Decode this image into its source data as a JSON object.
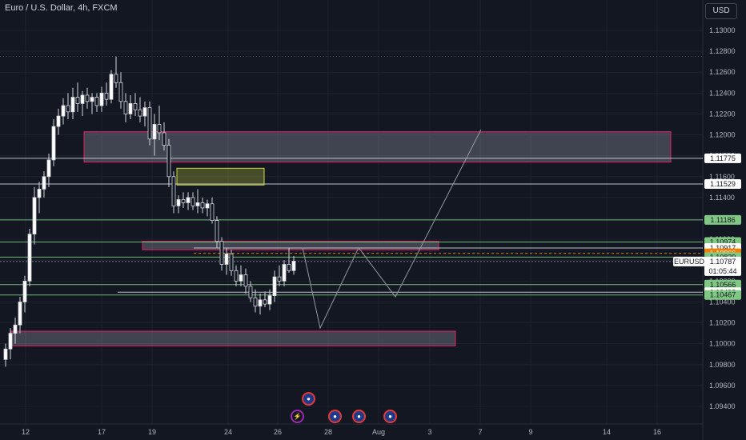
{
  "header": {
    "title": "Euro / U.S. Dollar, 4h, FXCM",
    "currency": "USD"
  },
  "chart_data": {
    "type": "candlestick",
    "title": "Euro / U.S. Dollar, 4h, FXCM",
    "ylim": [
      1.093,
      1.132
    ],
    "y_ticks": [
      "1.13000",
      "1.12800",
      "1.12600",
      "1.12400",
      "1.12200",
      "1.12000",
      "1.11800",
      "1.11600",
      "1.11400",
      "1.11200",
      "1.11000",
      "1.10800",
      "1.10600",
      "1.10400",
      "1.10200",
      "1.10000",
      "1.09800",
      "1.09600",
      "1.09400"
    ],
    "x_ticks": [
      "12",
      "17",
      "19",
      "24",
      "26",
      "28",
      "Aug",
      "3",
      "7",
      "9",
      "14",
      "16"
    ],
    "grid": true,
    "candles": [
      [
        1.0985,
        1.1,
        1.0978,
        1.0995
      ],
      [
        1.0995,
        1.1015,
        1.0985,
        1.101
      ],
      [
        1.101,
        1.1025,
        1.1,
        1.1018
      ],
      [
        1.1018,
        1.1045,
        1.101,
        1.104
      ],
      [
        1.104,
        1.1065,
        1.103,
        1.106
      ],
      [
        1.106,
        1.111,
        1.1055,
        1.1105
      ],
      [
        1.1105,
        1.115,
        1.1095,
        1.114
      ],
      [
        1.114,
        1.1155,
        1.1125,
        1.1148
      ],
      [
        1.1148,
        1.1165,
        1.114,
        1.116
      ],
      [
        1.116,
        1.1182,
        1.115,
        1.1176
      ],
      [
        1.1176,
        1.1215,
        1.117,
        1.1208
      ],
      [
        1.1208,
        1.1225,
        1.12,
        1.1218
      ],
      [
        1.1218,
        1.1235,
        1.121,
        1.1228
      ],
      [
        1.1228,
        1.124,
        1.1215,
        1.1222
      ],
      [
        1.1222,
        1.1245,
        1.1215,
        1.1236
      ],
      [
        1.1236,
        1.125,
        1.1222,
        1.123
      ],
      [
        1.123,
        1.1242,
        1.1218,
        1.1238
      ],
      [
        1.1238,
        1.1245,
        1.1225,
        1.1232
      ],
      [
        1.1232,
        1.124,
        1.122,
        1.1236
      ],
      [
        1.1236,
        1.124,
        1.1222,
        1.1228
      ],
      [
        1.1228,
        1.1246,
        1.1222,
        1.124
      ],
      [
        1.124,
        1.125,
        1.1228,
        1.1234
      ],
      [
        1.1234,
        1.1262,
        1.123,
        1.1258
      ],
      [
        1.1258,
        1.1275,
        1.1245,
        1.125
      ],
      [
        1.125,
        1.126,
        1.1225,
        1.1232
      ],
      [
        1.1232,
        1.124,
        1.1212,
        1.122
      ],
      [
        1.122,
        1.1238,
        1.1215,
        1.123
      ],
      [
        1.123,
        1.124,
        1.1218,
        1.1224
      ],
      [
        1.1224,
        1.1236,
        1.1212,
        1.1218
      ],
      [
        1.1218,
        1.1232,
        1.1208,
        1.1226
      ],
      [
        1.1226,
        1.1232,
        1.119,
        1.1196
      ],
      [
        1.1196,
        1.122,
        1.118,
        1.121
      ],
      [
        1.121,
        1.1228,
        1.1195,
        1.1202
      ],
      [
        1.1202,
        1.1212,
        1.1185,
        1.119
      ],
      [
        1.119,
        1.1196,
        1.115,
        1.116
      ],
      [
        1.116,
        1.1165,
        1.1125,
        1.1132
      ],
      [
        1.1132,
        1.1142,
        1.1125,
        1.1138
      ],
      [
        1.1138,
        1.1145,
        1.113,
        1.1135
      ],
      [
        1.1135,
        1.1145,
        1.1128,
        1.114
      ],
      [
        1.114,
        1.1145,
        1.1128,
        1.1132
      ],
      [
        1.1132,
        1.1148,
        1.1125,
        1.1135
      ],
      [
        1.1135,
        1.114,
        1.1125,
        1.113
      ],
      [
        1.113,
        1.1138,
        1.1122,
        1.1134
      ],
      [
        1.1134,
        1.114,
        1.1115,
        1.1118
      ],
      [
        1.1118,
        1.1122,
        1.1092,
        1.1098
      ],
      [
        1.1098,
        1.1102,
        1.107,
        1.1076
      ],
      [
        1.1076,
        1.1092,
        1.1066,
        1.1086
      ],
      [
        1.1086,
        1.109,
        1.1065,
        1.107
      ],
      [
        1.107,
        1.1075,
        1.1055,
        1.106
      ],
      [
        1.106,
        1.1075,
        1.1055,
        1.1066
      ],
      [
        1.1066,
        1.1072,
        1.1048,
        1.1055
      ],
      [
        1.1055,
        1.106,
        1.104,
        1.1044
      ],
      [
        1.1044,
        1.1052,
        1.103,
        1.1036
      ],
      [
        1.1036,
        1.1048,
        1.1028,
        1.1042
      ],
      [
        1.1042,
        1.105,
        1.1035,
        1.1038
      ],
      [
        1.1038,
        1.1052,
        1.1032,
        1.1046
      ],
      [
        1.1046,
        1.107,
        1.104,
        1.1064
      ],
      [
        1.1064,
        1.1075,
        1.1055,
        1.106
      ],
      [
        1.106,
        1.108,
        1.1055,
        1.1076
      ],
      [
        1.1076,
        1.1092,
        1.1068,
        1.107
      ],
      [
        1.107,
        1.1084,
        1.1066,
        1.1079
      ]
    ],
    "horizontal_levels": [
      {
        "price": 1.11775,
        "label": "1.11775",
        "badge_bg": "#ffffff",
        "badge_fg": "#131722",
        "line": "#d1d4dc"
      },
      {
        "price": 1.11529,
        "label": "1.11529",
        "badge_bg": "#ffffff",
        "badge_fg": "#131722",
        "line": "#d1d4dc"
      },
      {
        "price": 1.11186,
        "label": "1.11186",
        "badge_bg": "#81c784",
        "badge_fg": "#131722",
        "line": "#81c784"
      },
      {
        "price": 1.10974,
        "label": "1.10974",
        "badge_bg": "#81c784",
        "badge_fg": "#131722",
        "line": "#81c784"
      },
      {
        "price": 1.10917,
        "label": "1.10917",
        "badge_bg": "#ffffff",
        "badge_fg": "#131722",
        "line": "#d1d4dc"
      },
      {
        "price": 1.10866,
        "label": "1.10866",
        "badge_bg": "#f57c00",
        "badge_fg": "#ffffff",
        "line": "#f57c00"
      },
      {
        "price": 1.10829,
        "label": "1.10829",
        "badge_bg": "#81c784",
        "badge_fg": "#131722",
        "line": "#81c784"
      },
      {
        "price": 1.10566,
        "label": "1.10566",
        "badge_bg": "#81c784",
        "badge_fg": "#131722",
        "line": "#81c784"
      },
      {
        "price": 1.10493,
        "label": "1.10493",
        "badge_bg": "#ffffff",
        "badge_fg": "#131722",
        "line": "#d1d4dc"
      },
      {
        "price": 1.10467,
        "label": "1.10467",
        "badge_bg": "#81c784",
        "badge_fg": "#131722",
        "line": "#81c784"
      }
    ],
    "current_price": {
      "symbol": "EURUSD",
      "price": "1.10787",
      "countdown": "01:05:44"
    },
    "zones": [
      {
        "from": 1.1174,
        "to": 1.1203,
        "color": "#e91e63"
      },
      {
        "from": 1.1152,
        "to": 1.1168,
        "color": "#cddc39"
      },
      {
        "from": 1.109,
        "to": 1.1098,
        "color": "#e91e63"
      },
      {
        "from": 1.0998,
        "to": 1.1012,
        "color": "#e91e63"
      }
    ],
    "projection": [
      1.1092,
      1.1015,
      1.1092,
      1.1045,
      1.1205
    ],
    "colors": {
      "up": "#ffffff",
      "down": "#ffffff",
      "bg": "#131722",
      "grid": "#1e222d"
    }
  },
  "event_icons": [
    {
      "name": "us-flag-icon",
      "glyph": "●"
    },
    {
      "name": "lightning-icon",
      "glyph": "⚡"
    },
    {
      "name": "eu-flag-icon",
      "glyph": "●"
    },
    {
      "name": "us-flag-icon",
      "glyph": "●"
    },
    {
      "name": "eu-flag-icon",
      "glyph": "●"
    },
    {
      "name": "us-flag-icon",
      "glyph": "●"
    }
  ]
}
